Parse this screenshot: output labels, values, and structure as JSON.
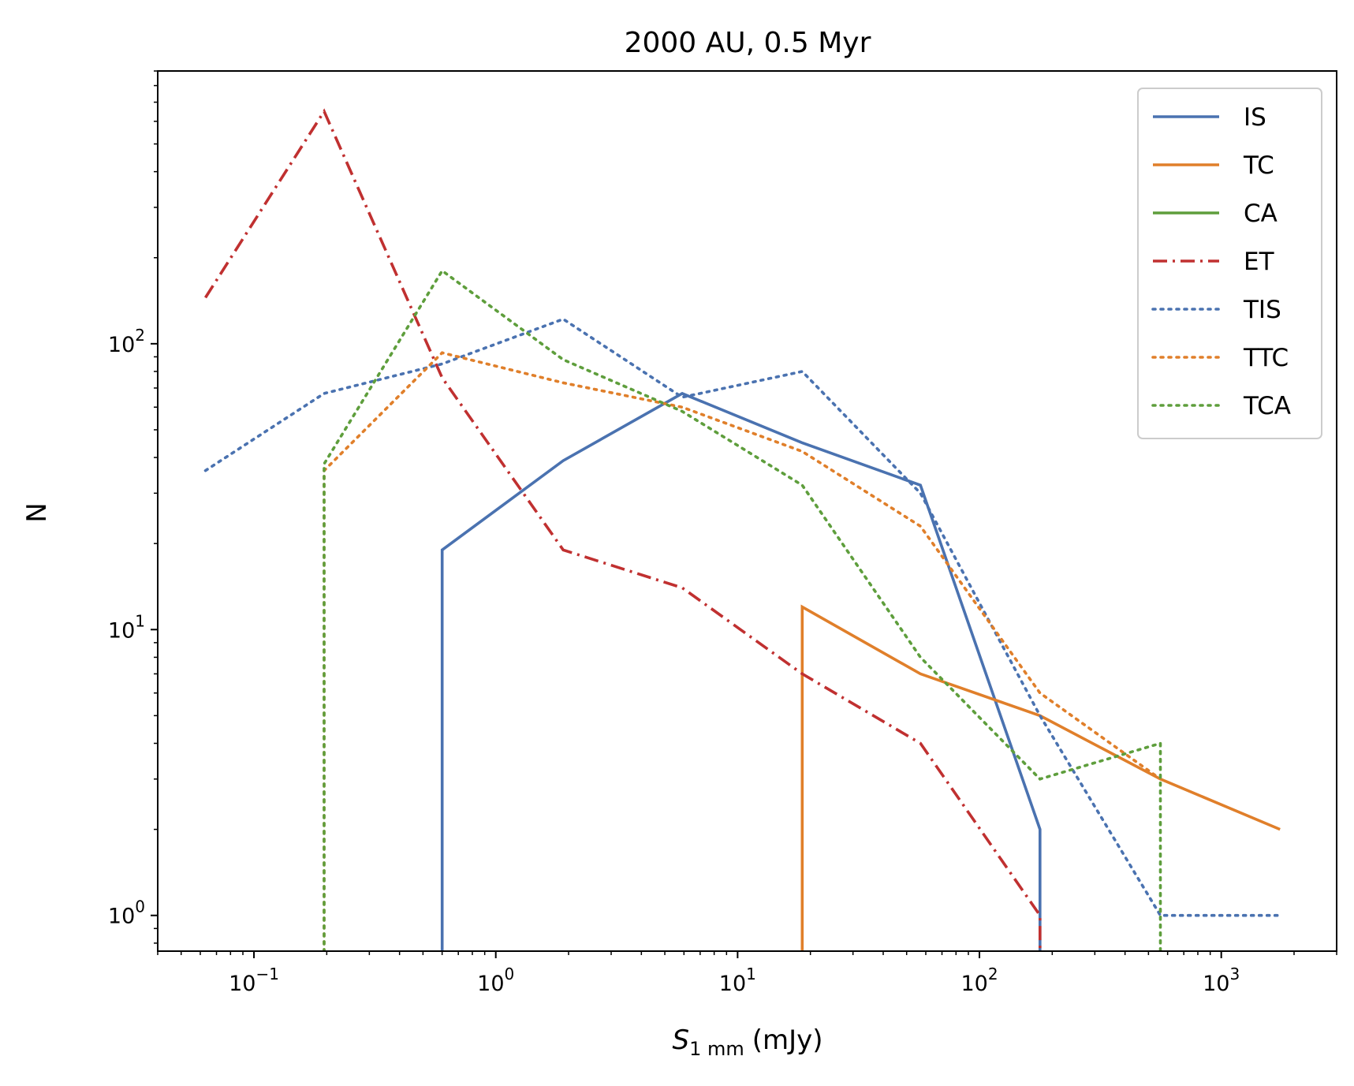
{
  "chart_data": {
    "type": "line",
    "title": "2000 AU, 0.5 Myr",
    "xlabel": {
      "main": "S",
      "subscript": "1 mm",
      "unit": "(mJy)"
    },
    "ylabel": "N",
    "xscale": "log",
    "yscale": "log",
    "xlim": [
      0.04,
      3000
    ],
    "ylim": [
      0.75,
      900
    ],
    "x_ticks": [
      {
        "base": "10",
        "exp": "−1",
        "value": 0.1
      },
      {
        "base": "10",
        "exp": "0",
        "value": 1
      },
      {
        "base": "10",
        "exp": "1",
        "value": 10
      },
      {
        "base": "10",
        "exp": "2",
        "value": 100
      },
      {
        "base": "10",
        "exp": "3",
        "value": 1000
      }
    ],
    "y_ticks": [
      {
        "base": "10",
        "exp": "0",
        "value": 1
      },
      {
        "base": "10",
        "exp": "1",
        "value": 10
      },
      {
        "base": "10",
        "exp": "2",
        "value": 100
      }
    ],
    "grid": false,
    "legend_position": "top-right",
    "series": [
      {
        "name": "IS",
        "color": "#4a72b0",
        "style": "solid",
        "x": [
          0.6,
          0.6,
          1.9,
          5.9,
          18.5,
          57,
          178,
          178
        ],
        "y": [
          0.7,
          19,
          39,
          67,
          45,
          32,
          2,
          0.7
        ]
      },
      {
        "name": "TC",
        "color": "#e07f2a",
        "style": "solid",
        "x": [
          18.5,
          18.5,
          57,
          178,
          560,
          1750
        ],
        "y": [
          0.7,
          12,
          7,
          5,
          3,
          2
        ]
      },
      {
        "name": "CA",
        "color": "#5e9e3c",
        "style": "solid",
        "x": [],
        "y": []
      },
      {
        "name": "ET",
        "color": "#c03030",
        "style": "dashdot",
        "x": [
          0.063,
          0.195,
          0.6,
          1.9,
          5.9,
          18.5,
          57,
          178,
          178
        ],
        "y": [
          145,
          650,
          76,
          19,
          14,
          7,
          4,
          1,
          0.7
        ]
      },
      {
        "name": "TIS",
        "color": "#4a72b0",
        "style": "dotted",
        "x": [
          0.063,
          0.195,
          0.6,
          1.9,
          5.9,
          18.5,
          57,
          178,
          560,
          1750
        ],
        "y": [
          36,
          67,
          85,
          122,
          65,
          80,
          30,
          5,
          1,
          1
        ]
      },
      {
        "name": "TTC",
        "color": "#e07f2a",
        "style": "dotted",
        "x": [
          0.195,
          0.195,
          0.6,
          1.9,
          5.9,
          18.5,
          57,
          178,
          560
        ],
        "y": [
          0.7,
          36,
          93,
          73,
          60,
          42,
          23,
          6,
          3
        ]
      },
      {
        "name": "TCA",
        "color": "#5e9e3c",
        "style": "dotted",
        "x": [
          0.195,
          0.195,
          0.6,
          1.9,
          5.9,
          18.5,
          57,
          178,
          560,
          560
        ],
        "y": [
          0.7,
          38,
          180,
          88,
          58,
          32,
          8,
          3,
          4,
          0.7
        ]
      }
    ]
  }
}
